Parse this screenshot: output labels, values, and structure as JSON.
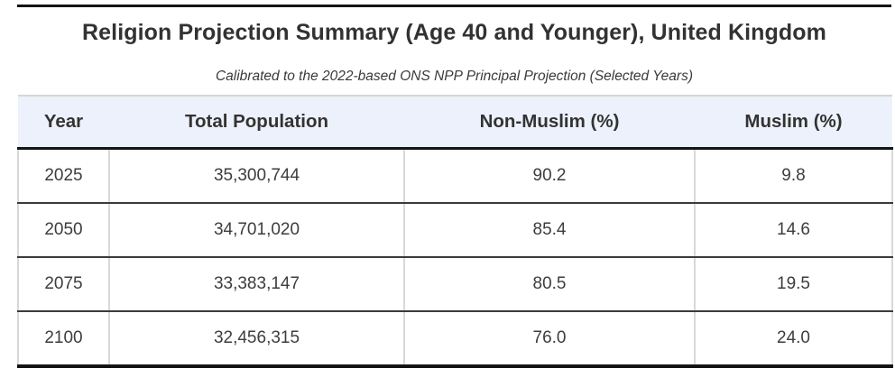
{
  "page": {
    "title": "Religion Projection Summary (Age 40 and Younger), United Kingdom",
    "subtitle": "Calibrated to the 2022-based ONS NPP Principal Projection (Selected Years)"
  },
  "colors": {
    "header_bg": "#edf1fb",
    "header_top_border": "#d6d6d6",
    "heavy_rule": "#141414",
    "row_divider": "#3b3b3b",
    "column_divider": "#d8d8d8",
    "text": "#333333"
  },
  "table": {
    "columns": [
      "Year",
      "Total Population",
      "Non-Muslim (%)",
      "Muslim (%)"
    ],
    "rows": [
      [
        "2025",
        "35,300,744",
        "90.2",
        "9.8"
      ],
      [
        "2050",
        "34,701,020",
        "85.4",
        "14.6"
      ],
      [
        "2075",
        "33,383,147",
        "80.5",
        "19.5"
      ],
      [
        "2100",
        "32,456,315",
        "76.0",
        "24.0"
      ]
    ]
  },
  "chart_data": {
    "type": "table",
    "title": "Religion Projection Summary (Age 40 and Younger), United Kingdom",
    "subtitle": "Calibrated to the 2022-based ONS NPP Principal Projection (Selected Years)",
    "columns": [
      "Year",
      "Total Population",
      "Non-Muslim (%)",
      "Muslim (%)"
    ],
    "years": [
      2025,
      2050,
      2075,
      2100
    ],
    "total_population": [
      35300744,
      34701020,
      33383147,
      32456315
    ],
    "non_muslim_pct": [
      90.2,
      85.4,
      80.5,
      76.0
    ],
    "muslim_pct": [
      9.8,
      14.6,
      19.5,
      24.0
    ]
  }
}
